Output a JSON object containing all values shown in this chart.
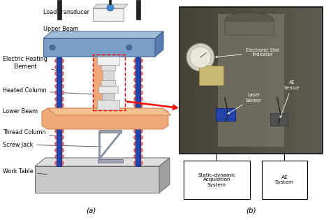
{
  "fig_width": 4.74,
  "fig_height": 3.15,
  "dpi": 100,
  "bg_color": "#ffffff",
  "caption_a": "(a)",
  "caption_b": "(b)",
  "boxes_bottom": [
    "Static-dynamic\nAcquisition\nSystem",
    "AE\nSystem"
  ],
  "label_font_size": 5.8,
  "caption_font_size": 7.5,
  "upper_beam_color": "#7b9ec8",
  "upper_beam_top_color": "#a0bcd8",
  "upper_beam_side_color": "#5a7ab0",
  "lower_beam_color": "#f0a878",
  "lower_beam_top_color": "#f5c090",
  "lower_beam_side_color": "#d08050",
  "col_red_color": "#e07070",
  "col_red_dark": "#c04040",
  "col_blue_color": "#2244aa",
  "col_blue_dark": "#0a2080",
  "worktable_face": "#c8c8c8",
  "worktable_top": "#e0e0e0",
  "worktable_side": "#a0a0a0",
  "heated_col_color": "#f0a878",
  "heated_col_side": "#d08050",
  "center_assy_color": "#e8e8e8",
  "dashed_rect_color": "#ff0000",
  "arrow_color": "#ff0000",
  "screw_jack_color": "#b0b8c8",
  "screw_jack_dark": "#808898",
  "photo_bg": "#4a4840",
  "photo_border": "#111111",
  "label_line_color": "#333333"
}
